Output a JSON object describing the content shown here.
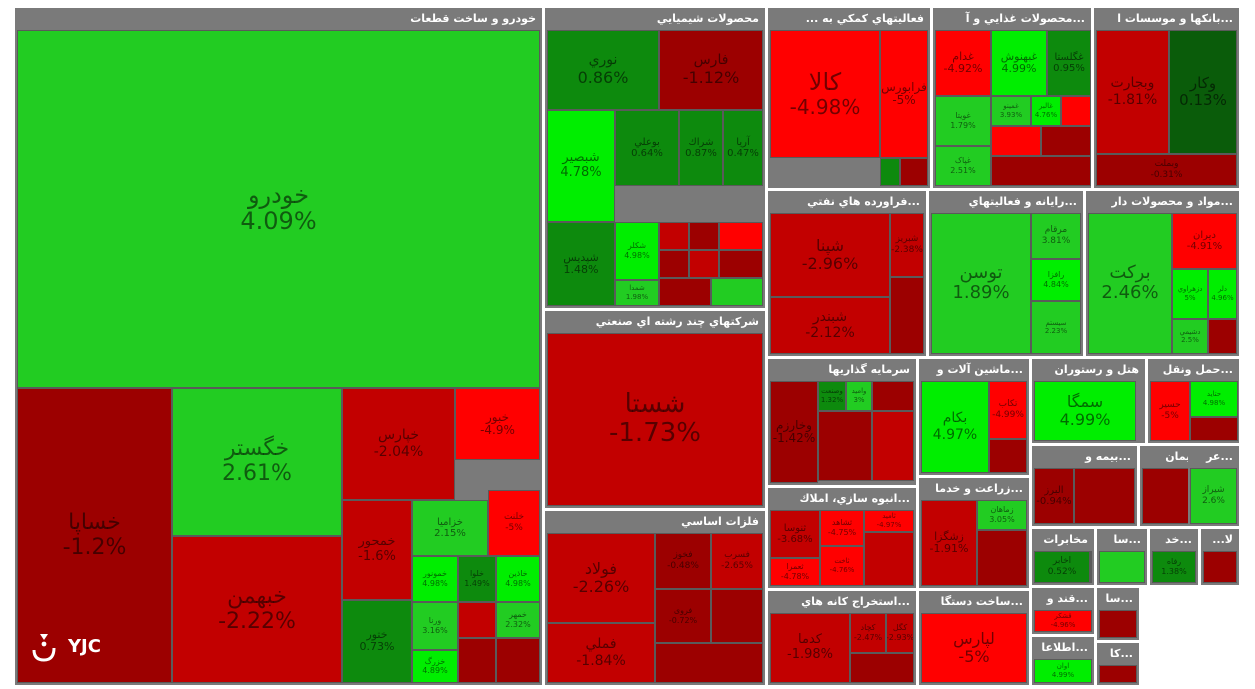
{
  "logo": {
    "text": "YJC",
    "icon": "yjc-logo-icon"
  },
  "colors": {
    "strong_up": "#00ee00",
    "up": "#22cc22",
    "mild_up": "#0d8a0d",
    "flat": "#0a5c0a",
    "mild_down": "#9c0000",
    "down": "#c20000",
    "strong_down": "#ff0000",
    "border": "#5a5a5a",
    "header": "#7a7a7a"
  },
  "chart_data": {
    "type": "treemap",
    "title": "",
    "sectors": [
      {
        "name": "خودرو و ساخت قطعات",
        "stocks": [
          {
            "name": "خودرو",
            "change": 4.09
          },
          {
            "name": "خساپا",
            "change": -1.2
          },
          {
            "name": "خگستر",
            "change": 2.61
          },
          {
            "name": "خبهمن",
            "change": -2.22
          },
          {
            "name": "خپارس",
            "change": -2.04
          },
          {
            "name": "خبور",
            "change": -4.9
          },
          {
            "name": "خمحور",
            "change": -1.6
          },
          {
            "name": "ختور",
            "change": 0.73
          },
          {
            "name": "خزامیا",
            "change": 2.15
          },
          {
            "name": "خلنت",
            "change": -5
          },
          {
            "name": "خمونور",
            "change": 4.98
          },
          {
            "name": "خلوا",
            "change": 1.49
          },
          {
            "name": "خاذين",
            "change": 4.98
          },
          {
            "name": "خمهر",
            "change": 2.32
          },
          {
            "name": "ورنا",
            "change": 3.16
          },
          {
            "name": "خزرگ",
            "change": 4.89
          }
        ]
      },
      {
        "name": "محصولات شيميايي",
        "stocks": [
          {
            "name": "نوري",
            "change": 0.86
          },
          {
            "name": "فارس",
            "change": -1.12
          },
          {
            "name": "شبصير",
            "change": 4.78
          },
          {
            "name": "بوعلي",
            "change": 0.64
          },
          {
            "name": "شراك",
            "change": 0.87
          },
          {
            "name": "آريا",
            "change": 0.47
          },
          {
            "name": "شپديس",
            "change": 1.48
          },
          {
            "name": "شکلر",
            "change": 4.98
          },
          {
            "name": "شمدا",
            "change": 1.98
          }
        ]
      },
      {
        "name": "... فعاليتهاي كمكي به",
        "stocks": [
          {
            "name": "كالا",
            "change": -4.98
          },
          {
            "name": "فرابورس",
            "change": -5
          }
        ]
      },
      {
        "name": "محصولات غذايي و آ...",
        "stocks": [
          {
            "name": "غدام",
            "change": -4.92
          },
          {
            "name": "غبهنوش",
            "change": 4.99
          },
          {
            "name": "غگلستا",
            "change": 0.95
          },
          {
            "name": "غويتا",
            "change": 1.79
          },
          {
            "name": "غمينو",
            "change": 3.93
          },
          {
            "name": "غالبر",
            "change": 4.76
          },
          {
            "name": "غپاک",
            "change": 2.51
          }
        ]
      },
      {
        "name": "بانكها و موسسات ا...",
        "stocks": [
          {
            "name": "وبجارت",
            "change": -1.81
          },
          {
            "name": "وكار",
            "change": 0.13
          },
          {
            "name": "وبملت",
            "change": -0.31
          }
        ]
      },
      {
        "name": "فراورده هاي نفتي...",
        "stocks": [
          {
            "name": "شپنا",
            "change": -2.96
          },
          {
            "name": "شبندر",
            "change": -2.12
          },
          {
            "name": "شبريز",
            "change": -2.38
          }
        ]
      },
      {
        "name": "رايانه و فعاليتهاي...",
        "stocks": [
          {
            "name": "توسن",
            "change": 1.89
          },
          {
            "name": "مرقام",
            "change": 3.81
          },
          {
            "name": "رافزا",
            "change": 4.84
          },
          {
            "name": "سيستم",
            "change": 2.23
          }
        ]
      },
      {
        "name": "مواد و محصولات دار...",
        "stocks": [
          {
            "name": "بركت",
            "change": 2.46
          },
          {
            "name": "ديران",
            "change": -4.91
          },
          {
            "name": "دزهراوي",
            "change": 5
          },
          {
            "name": "دلر",
            "change": 4.96
          },
          {
            "name": "دشيمي",
            "change": 2.5
          }
        ]
      },
      {
        "name": "شركتهاي چند رشته اي صنعتي",
        "stocks": [
          {
            "name": "شستا",
            "change": -1.73
          }
        ]
      },
      {
        "name": "سرمايه گذاريها",
        "stocks": [
          {
            "name": "وخارزم",
            "change": -1.42
          },
          {
            "name": "وصنعت",
            "change": 1.32
          },
          {
            "name": "وامید",
            "change": 3
          }
        ]
      },
      {
        "name": "ماشين آلات و...",
        "stocks": [
          {
            "name": "بكام",
            "change": 4.97
          },
          {
            "name": "تكاب",
            "change": -4.99
          }
        ]
      },
      {
        "name": "هتل و رستوران",
        "stocks": [
          {
            "name": "سمگا",
            "change": 4.99
          }
        ]
      },
      {
        "name": "حمل ونقل...",
        "stocks": [
          {
            "name": "حسير",
            "change": -5
          },
          {
            "name": "حتايد",
            "change": 4.98
          }
        ]
      },
      {
        "name": "فلزات اساسي",
        "stocks": [
          {
            "name": "فولاد",
            "change": -2.26
          },
          {
            "name": "فملي",
            "change": -1.84
          },
          {
            "name": "فخوز",
            "change": -0.48
          },
          {
            "name": "فسرب",
            "change": -2.65
          },
          {
            "name": "فروی",
            "change": -0.72
          }
        ]
      },
      {
        "name": "انبوه سازي، املاك...",
        "stocks": [
          {
            "name": "ثنوسا",
            "change": -3.68
          },
          {
            "name": "ثشاهد",
            "change": -4.75
          },
          {
            "name": "ثامید",
            "change": -4.97
          },
          {
            "name": "ثعمرا",
            "change": -4.78
          },
          {
            "name": "ثاخت",
            "change": -4.76
          }
        ]
      },
      {
        "name": "زراعت و خدما...",
        "stocks": [
          {
            "name": "زشگزا",
            "change": -1.91
          },
          {
            "name": "زماهان",
            "change": 3.05
          }
        ]
      },
      {
        "name": "بيمه و...",
        "stocks": [
          {
            "name": "البرز",
            "change": -0.94
          }
        ]
      },
      {
        "name": "سيمان...",
        "stocks": []
      },
      {
        "name": "عر...",
        "stocks": [
          {
            "name": "شيراز",
            "change": 2.6
          }
        ]
      },
      {
        "name": "استخراج كانه هاي...",
        "stocks": [
          {
            "name": "كدما",
            "change": -1.98
          },
          {
            "name": "كچاد",
            "change": -2.47
          },
          {
            "name": "كگل",
            "change": -2.93
          }
        ]
      },
      {
        "name": "ساخت دستگا...",
        "stocks": [
          {
            "name": "لپارس",
            "change": -5
          }
        ]
      },
      {
        "name": "مخابرات",
        "stocks": [
          {
            "name": "اخابر",
            "change": 0.52
          }
        ]
      },
      {
        "name": "سا...",
        "stocks": []
      },
      {
        "name": "خد...",
        "stocks": [
          {
            "name": "رفاه",
            "change": 1.38
          }
        ]
      },
      {
        "name": "...لا",
        "stocks": []
      },
      {
        "name": "قند و...",
        "stocks": [
          {
            "name": "قشکر",
            "change": -4.96
          }
        ]
      },
      {
        "name": "اطلاعا...",
        "stocks": [
          {
            "name": "اوان",
            "change": 4.99
          }
        ]
      },
      {
        "name": "سا...",
        "stocks": []
      },
      {
        "name": "كا...",
        "stocks": []
      }
    ]
  }
}
